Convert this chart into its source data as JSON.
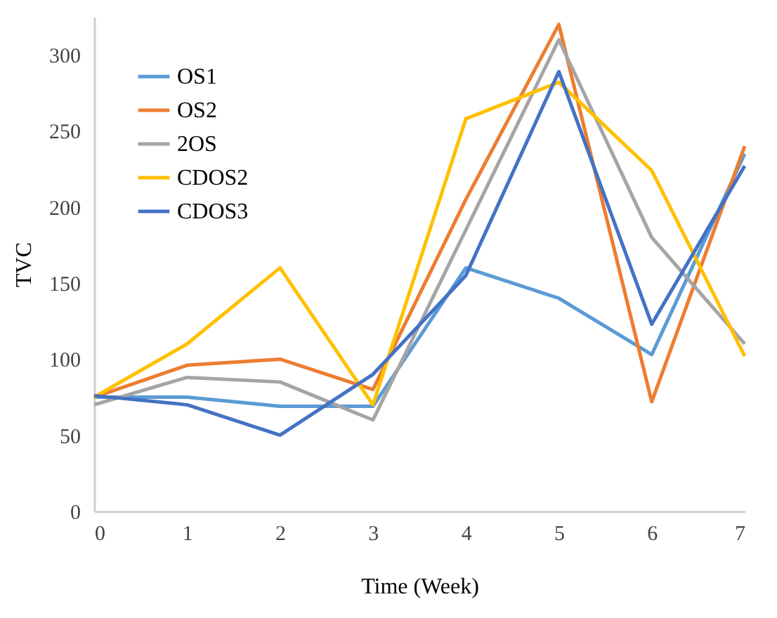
{
  "chart_data": {
    "type": "line",
    "xlabel": "Time (Week)",
    "ylabel": "TVC",
    "x": [
      0,
      1,
      2,
      3,
      4,
      5,
      6,
      7
    ],
    "xlim": [
      0,
      7
    ],
    "xticks": [
      0,
      1,
      2,
      3,
      4,
      5,
      6,
      7
    ],
    "ylim": [
      0,
      325
    ],
    "yticks": [
      0,
      50,
      100,
      150,
      200,
      250,
      300
    ],
    "grid": false,
    "legend": "top left",
    "marker": "none",
    "line_style": "solid",
    "series": [
      {
        "name": "OS1",
        "color": "#5b9bd5",
        "values": [
          75,
          75,
          69,
          69,
          160,
          140,
          103,
          235
        ]
      },
      {
        "name": "OS2",
        "color": "#ed7d31",
        "values": [
          75,
          96,
          100,
          80,
          205,
          320,
          72,
          240
        ]
      },
      {
        "name": "2OS",
        "color": "#a5a5a5",
        "values": [
          70,
          88,
          85,
          60,
          185,
          310,
          180,
          110
        ]
      },
      {
        "name": "CDOS2",
        "color": "#ffc000",
        "values": [
          75,
          110,
          160,
          70,
          258,
          282,
          224,
          102
        ]
      },
      {
        "name": "CDOS3",
        "color": "#4472c4",
        "values": [
          76,
          70,
          50,
          90,
          155,
          289,
          123,
          227
        ]
      }
    ]
  }
}
